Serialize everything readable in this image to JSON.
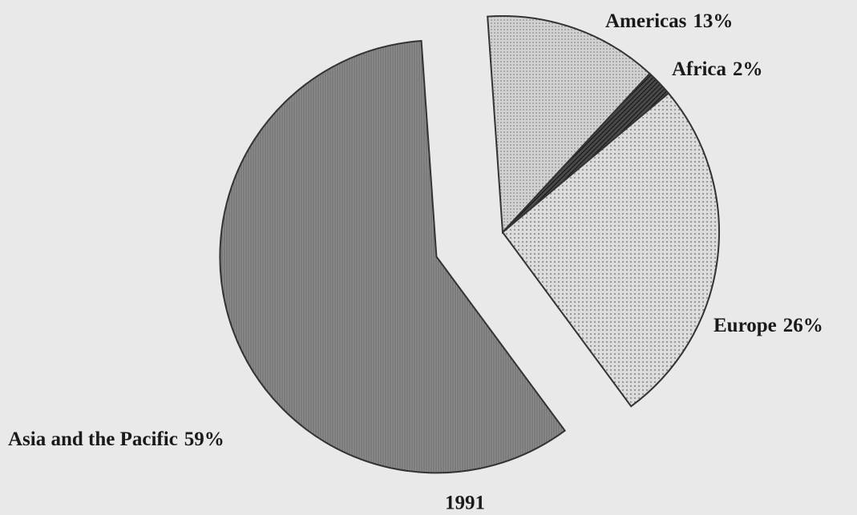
{
  "chart_data": {
    "type": "pie",
    "title": "1991",
    "categories": [
      "Americas",
      "Africa",
      "Europe",
      "Asia and the Pacific"
    ],
    "values": [
      13,
      2,
      26,
      59
    ],
    "value_labels": [
      "13%",
      "2%",
      "26%",
      "59%"
    ],
    "colors": [
      "#d2d2d2",
      "#4a4a4a",
      "#dcdcdc",
      "#8c8c8c"
    ]
  }
}
